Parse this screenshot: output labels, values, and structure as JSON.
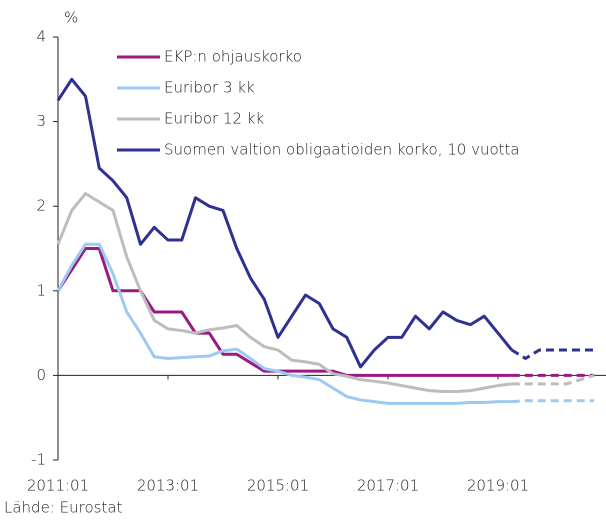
{
  "chart_data": {
    "type": "line",
    "y_label": "%",
    "source": "Lähde: Eurostat",
    "xlim": [
      2011,
      2021
    ],
    "xticks": [
      {
        "value": 2011,
        "label": "2011:01"
      },
      {
        "value": 2013,
        "label": "2013:01"
      },
      {
        "value": 2015,
        "label": "2015:01"
      },
      {
        "value": 2017,
        "label": "2017:01"
      },
      {
        "value": 2019,
        "label": "2019:01"
      }
    ],
    "ylim": [
      -1,
      4
    ],
    "yticks": [
      -1,
      0,
      1,
      2,
      3,
      4
    ],
    "legend": "top",
    "x": [
      2011,
      2011.25,
      2011.5,
      2011.75,
      2012,
      2012.25,
      2012.5,
      2012.75,
      2013,
      2013.25,
      2013.5,
      2013.75,
      2014,
      2014.25,
      2014.5,
      2014.75,
      2015,
      2015.25,
      2015.5,
      2015.75,
      2016,
      2016.25,
      2016.5,
      2016.75,
      2017,
      2017.25,
      2017.5,
      2017.75,
      2018,
      2018.25,
      2018.5,
      2018.75,
      2019,
      2019.25,
      2019.5,
      2019.75,
      2020,
      2020.25,
      2020.5,
      2020.75
    ],
    "series": [
      {
        "name": "EKP:n ohjauskorko",
        "color": "#9b1a82",
        "values": [
          1.0,
          1.25,
          1.5,
          1.5,
          1.0,
          1.0,
          1.0,
          0.75,
          0.75,
          0.75,
          0.5,
          0.5,
          0.25,
          0.25,
          0.15,
          0.05,
          0.05,
          0.05,
          0.05,
          0.05,
          0.05,
          0,
          0,
          0,
          0,
          0,
          0,
          0,
          0,
          0,
          0,
          0,
          0,
          0,
          null,
          null,
          null,
          null,
          null,
          null
        ],
        "forecast": [
          null,
          null,
          null,
          null,
          null,
          null,
          null,
          null,
          null,
          null,
          null,
          null,
          null,
          null,
          null,
          null,
          null,
          null,
          null,
          null,
          null,
          null,
          null,
          null,
          null,
          null,
          null,
          null,
          null,
          null,
          null,
          null,
          null,
          0,
          0,
          0,
          0,
          0,
          0,
          0
        ]
      },
      {
        "name": "Euribor 3 kk",
        "color": "#9ec9f2",
        "values": [
          1.0,
          1.3,
          1.55,
          1.55,
          1.2,
          0.75,
          0.5,
          0.22,
          0.2,
          0.21,
          0.22,
          0.23,
          0.29,
          0.31,
          0.2,
          0.08,
          0.05,
          0.0,
          -0.02,
          -0.05,
          -0.15,
          -0.25,
          -0.29,
          -0.31,
          -0.33,
          -0.33,
          -0.33,
          -0.33,
          -0.33,
          -0.33,
          -0.32,
          -0.32,
          -0.31,
          -0.31,
          null,
          null,
          null,
          null,
          null,
          null
        ],
        "forecast": [
          null,
          null,
          null,
          null,
          null,
          null,
          null,
          null,
          null,
          null,
          null,
          null,
          null,
          null,
          null,
          null,
          null,
          null,
          null,
          null,
          null,
          null,
          null,
          null,
          null,
          null,
          null,
          null,
          null,
          null,
          null,
          null,
          null,
          -0.31,
          -0.3,
          -0.3,
          -0.3,
          -0.3,
          -0.3,
          -0.3
        ]
      },
      {
        "name": "Euribor 12 kk",
        "color": "#bdbdbd",
        "values": [
          1.55,
          1.95,
          2.15,
          2.05,
          1.95,
          1.4,
          1.0,
          0.65,
          0.55,
          0.53,
          0.5,
          0.54,
          0.56,
          0.59,
          0.45,
          0.34,
          0.3,
          0.18,
          0.16,
          0.13,
          0.02,
          -0.01,
          -0.05,
          -0.07,
          -0.09,
          -0.12,
          -0.15,
          -0.18,
          -0.19,
          -0.19,
          -0.18,
          -0.15,
          -0.12,
          -0.1,
          null,
          null,
          null,
          null,
          null,
          null
        ],
        "forecast": [
          null,
          null,
          null,
          null,
          null,
          null,
          null,
          null,
          null,
          null,
          null,
          null,
          null,
          null,
          null,
          null,
          null,
          null,
          null,
          null,
          null,
          null,
          null,
          null,
          null,
          null,
          null,
          null,
          null,
          null,
          null,
          null,
          null,
          -0.1,
          -0.1,
          -0.1,
          -0.1,
          -0.1,
          -0.05,
          0
        ]
      },
      {
        "name": "Suomen valtion obligaatioiden korko, 10 vuotta",
        "color": "#2e3192",
        "values": [
          3.25,
          3.5,
          3.3,
          2.45,
          2.3,
          2.1,
          1.55,
          1.75,
          1.6,
          1.6,
          2.1,
          2.0,
          1.95,
          1.5,
          1.15,
          0.9,
          0.45,
          0.7,
          0.95,
          0.85,
          0.55,
          0.45,
          0.1,
          0.3,
          0.45,
          0.45,
          0.7,
          0.55,
          0.75,
          0.65,
          0.6,
          0.7,
          0.5,
          0.3,
          null,
          null,
          null,
          null,
          null,
          null
        ],
        "forecast": [
          null,
          null,
          null,
          null,
          null,
          null,
          null,
          null,
          null,
          null,
          null,
          null,
          null,
          null,
          null,
          null,
          null,
          null,
          null,
          null,
          null,
          null,
          null,
          null,
          null,
          null,
          null,
          null,
          null,
          null,
          null,
          null,
          null,
          0.3,
          0.2,
          0.3,
          0.3,
          0.3,
          0.3,
          0.3
        ]
      }
    ]
  }
}
